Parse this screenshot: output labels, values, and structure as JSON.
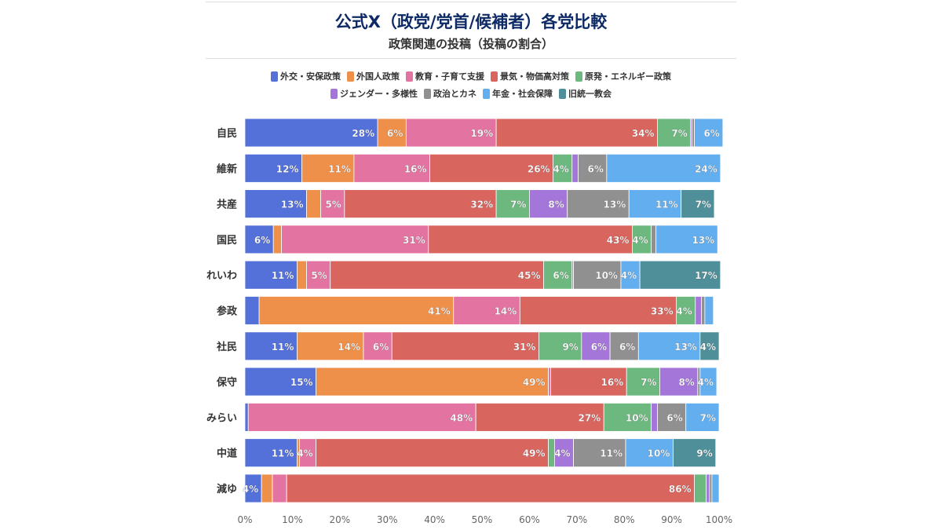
{
  "title": "公式X（政党/党首/候補者）各党比較",
  "subtitle": "政策関連の投稿（投稿の割合）",
  "chart_data": {
    "type": "bar",
    "orientation": "horizontal",
    "stacked": true,
    "normalized": true,
    "xlim": [
      0,
      100
    ],
    "x_ticks": [
      "0%",
      "10%",
      "20%",
      "30%",
      "40%",
      "50%",
      "60%",
      "70%",
      "80%",
      "90%",
      "100%"
    ],
    "legend_position": "top",
    "grid": false,
    "categories": [
      "自民",
      "維新",
      "共産",
      "国民",
      "れいわ",
      "参政",
      "社民",
      "保守",
      "みらい",
      "中道",
      "減ゆ"
    ],
    "series": [
      {
        "name": "外交・安保政策",
        "color": "#5470d9",
        "values": [
          28,
          12,
          13,
          6,
          11,
          3,
          11,
          15,
          0.7,
          11,
          3.5
        ]
      },
      {
        "name": "外国人政策",
        "color": "#ee8f4a",
        "values": [
          6,
          11,
          3,
          1.7,
          2,
          41,
          14,
          49,
          0,
          0.5,
          2.3
        ]
      },
      {
        "name": "教育・子育て支援",
        "color": "#e373a0",
        "values": [
          19,
          16,
          5,
          31,
          5,
          14,
          6,
          0.5,
          48,
          3.5,
          3
        ]
      },
      {
        "name": "景気・物価高対策",
        "color": "#d9655f",
        "values": [
          34,
          26,
          32,
          43,
          45,
          33,
          31,
          16,
          27,
          49,
          86
        ]
      },
      {
        "name": "原発・エネルギー政策",
        "color": "#6cb87f",
        "values": [
          7,
          4,
          7,
          4,
          6,
          4,
          9,
          7,
          10,
          1.3,
          2.5
        ]
      },
      {
        "name": "ジェンダー・多様性",
        "color": "#a476d9",
        "values": [
          0.3,
          1.3,
          8,
          0,
          0.3,
          1.3,
          6,
          8,
          1.3,
          4,
          0.7
        ]
      },
      {
        "name": "政治とカネ",
        "color": "#909090",
        "values": [
          0.5,
          6,
          13,
          1,
          10,
          0.7,
          6,
          0.5,
          6,
          11,
          0.5
        ]
      },
      {
        "name": "年金・社会保障",
        "color": "#63aeee",
        "values": [
          6,
          24,
          11,
          13,
          4,
          1.8,
          13,
          3.5,
          7,
          10,
          1.5
        ]
      },
      {
        "name": "旧統一教会",
        "color": "#4e8f99",
        "values": [
          0,
          0,
          7,
          0,
          17,
          0,
          4,
          0,
          0,
          9,
          0
        ]
      }
    ]
  }
}
